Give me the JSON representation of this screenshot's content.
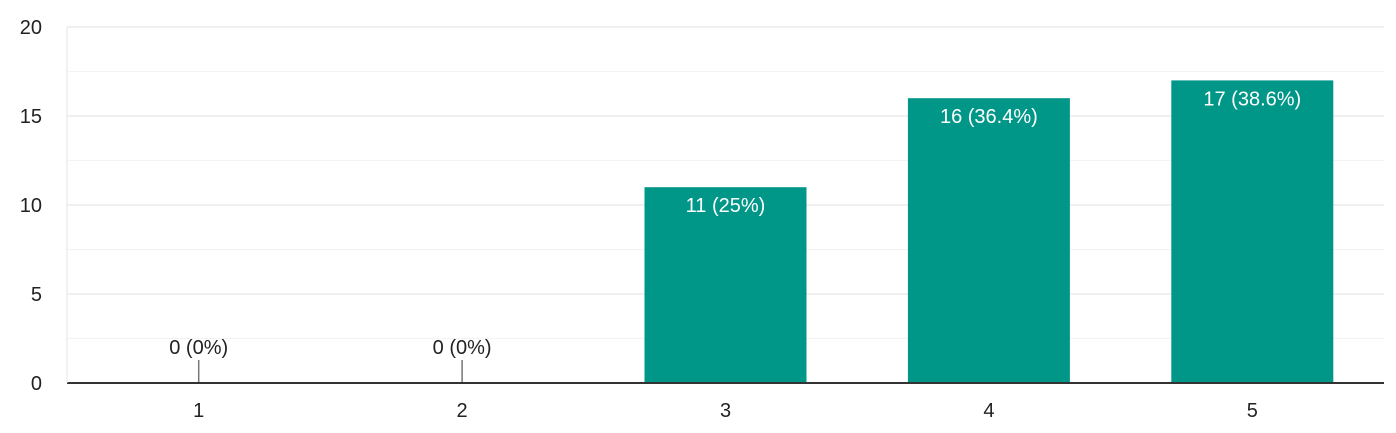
{
  "chart_data": {
    "type": "bar",
    "categories": [
      "1",
      "2",
      "3",
      "4",
      "5"
    ],
    "values": [
      0,
      0,
      11,
      16,
      17
    ],
    "data_labels": [
      "0 (0%)",
      "0 (0%)",
      "11 (25%)",
      "16 (36.4%)",
      "17 (38.6%)"
    ],
    "y_ticks": [
      "0",
      "5",
      "10",
      "15",
      "20"
    ],
    "ylim": [
      0,
      20
    ],
    "grid": true,
    "legend": "none",
    "colors": {
      "bar": "#009688",
      "grid_major": "#e8e8e8",
      "grid_minor": "#f3f3f3",
      "axis": "#333333",
      "label_inside": "#ffffff",
      "label_outside": "#222222"
    }
  }
}
